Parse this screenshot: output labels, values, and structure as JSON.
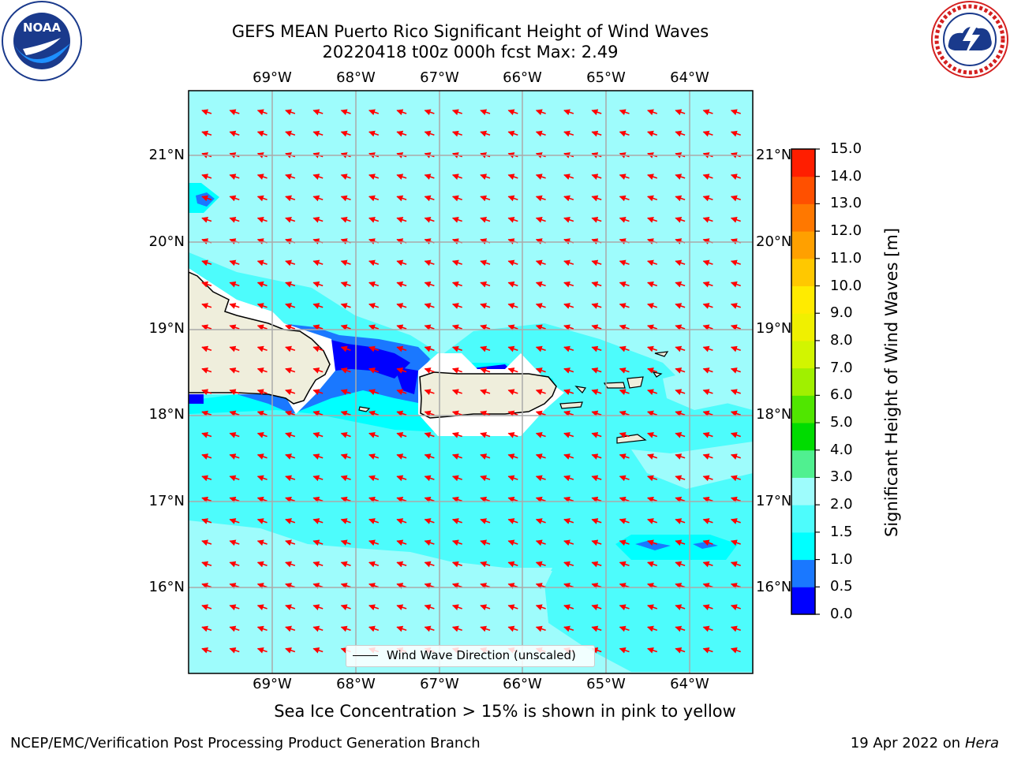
{
  "title": {
    "line1": "GEFS MEAN Puerto Rico Significant Height of Wind Waves",
    "line2": "20220418 t00z 000h fcst   Max: 2.49"
  },
  "logos": {
    "noaa": {
      "text": "NOAA",
      "ring_text": "NATIONAL OCEANIC AND ATMOSPHERIC ADMINISTRATION · U.S. DEPARTMENT OF COMMERCE"
    },
    "nws": {
      "ring_text": "NATIONAL WEATHER SERVICE"
    }
  },
  "map": {
    "lon_ticks": [
      "69°W",
      "68°W",
      "67°W",
      "66°W",
      "65°W",
      "64°W"
    ],
    "lat_ticks": [
      "21°N",
      "20°N",
      "19°N",
      "18°N",
      "17°N",
      "16°N"
    ],
    "lon_range": [
      -70.0,
      -63.3
    ],
    "lat_range": [
      15.0,
      21.75
    ],
    "grid": true,
    "legend": {
      "label": "Wind Wave Direction (unscaled)",
      "placement": "bottom-center"
    },
    "arrow_color": "#ff0000",
    "wave_direction": "toward the west-southwest"
  },
  "colorbar": {
    "label": "Significant Height of Wind Waves [m]",
    "ticks": [
      "15.0",
      "14.0",
      "13.0",
      "12.0",
      "11.0",
      "10.0",
      "9.0",
      "8.0",
      "7.0",
      "6.0",
      "5.0",
      "4.0",
      "3.0",
      "2.0",
      "1.5",
      "1.0",
      "0.5",
      "0.0"
    ],
    "levels": [
      0.0,
      0.5,
      1.0,
      1.5,
      2.0,
      3.0,
      4.0,
      5.0,
      6.0,
      7.0,
      8.0,
      9.0,
      10.0,
      11.0,
      12.0,
      13.0,
      14.0,
      15.0
    ],
    "colors": [
      "#0000ff",
      "#1a78ff",
      "#00ffff",
      "#4dfcfc",
      "#9efcfc",
      "#50f090",
      "#00dc00",
      "#50e600",
      "#a0f000",
      "#d2f500",
      "#f0f000",
      "#ffeb00",
      "#ffc800",
      "#ffa000",
      "#ff7800",
      "#ff5000",
      "#ff1e00"
    ],
    "land_color": "#efeedc"
  },
  "subtitle": "Sea Ice Concentration > 15% is shown in pink to yellow",
  "footer": {
    "left": "NCEP/EMC/Verification Post Processing Product Generation Branch",
    "right_date": "19 Apr 2022 on ",
    "right_host": "Hera"
  }
}
